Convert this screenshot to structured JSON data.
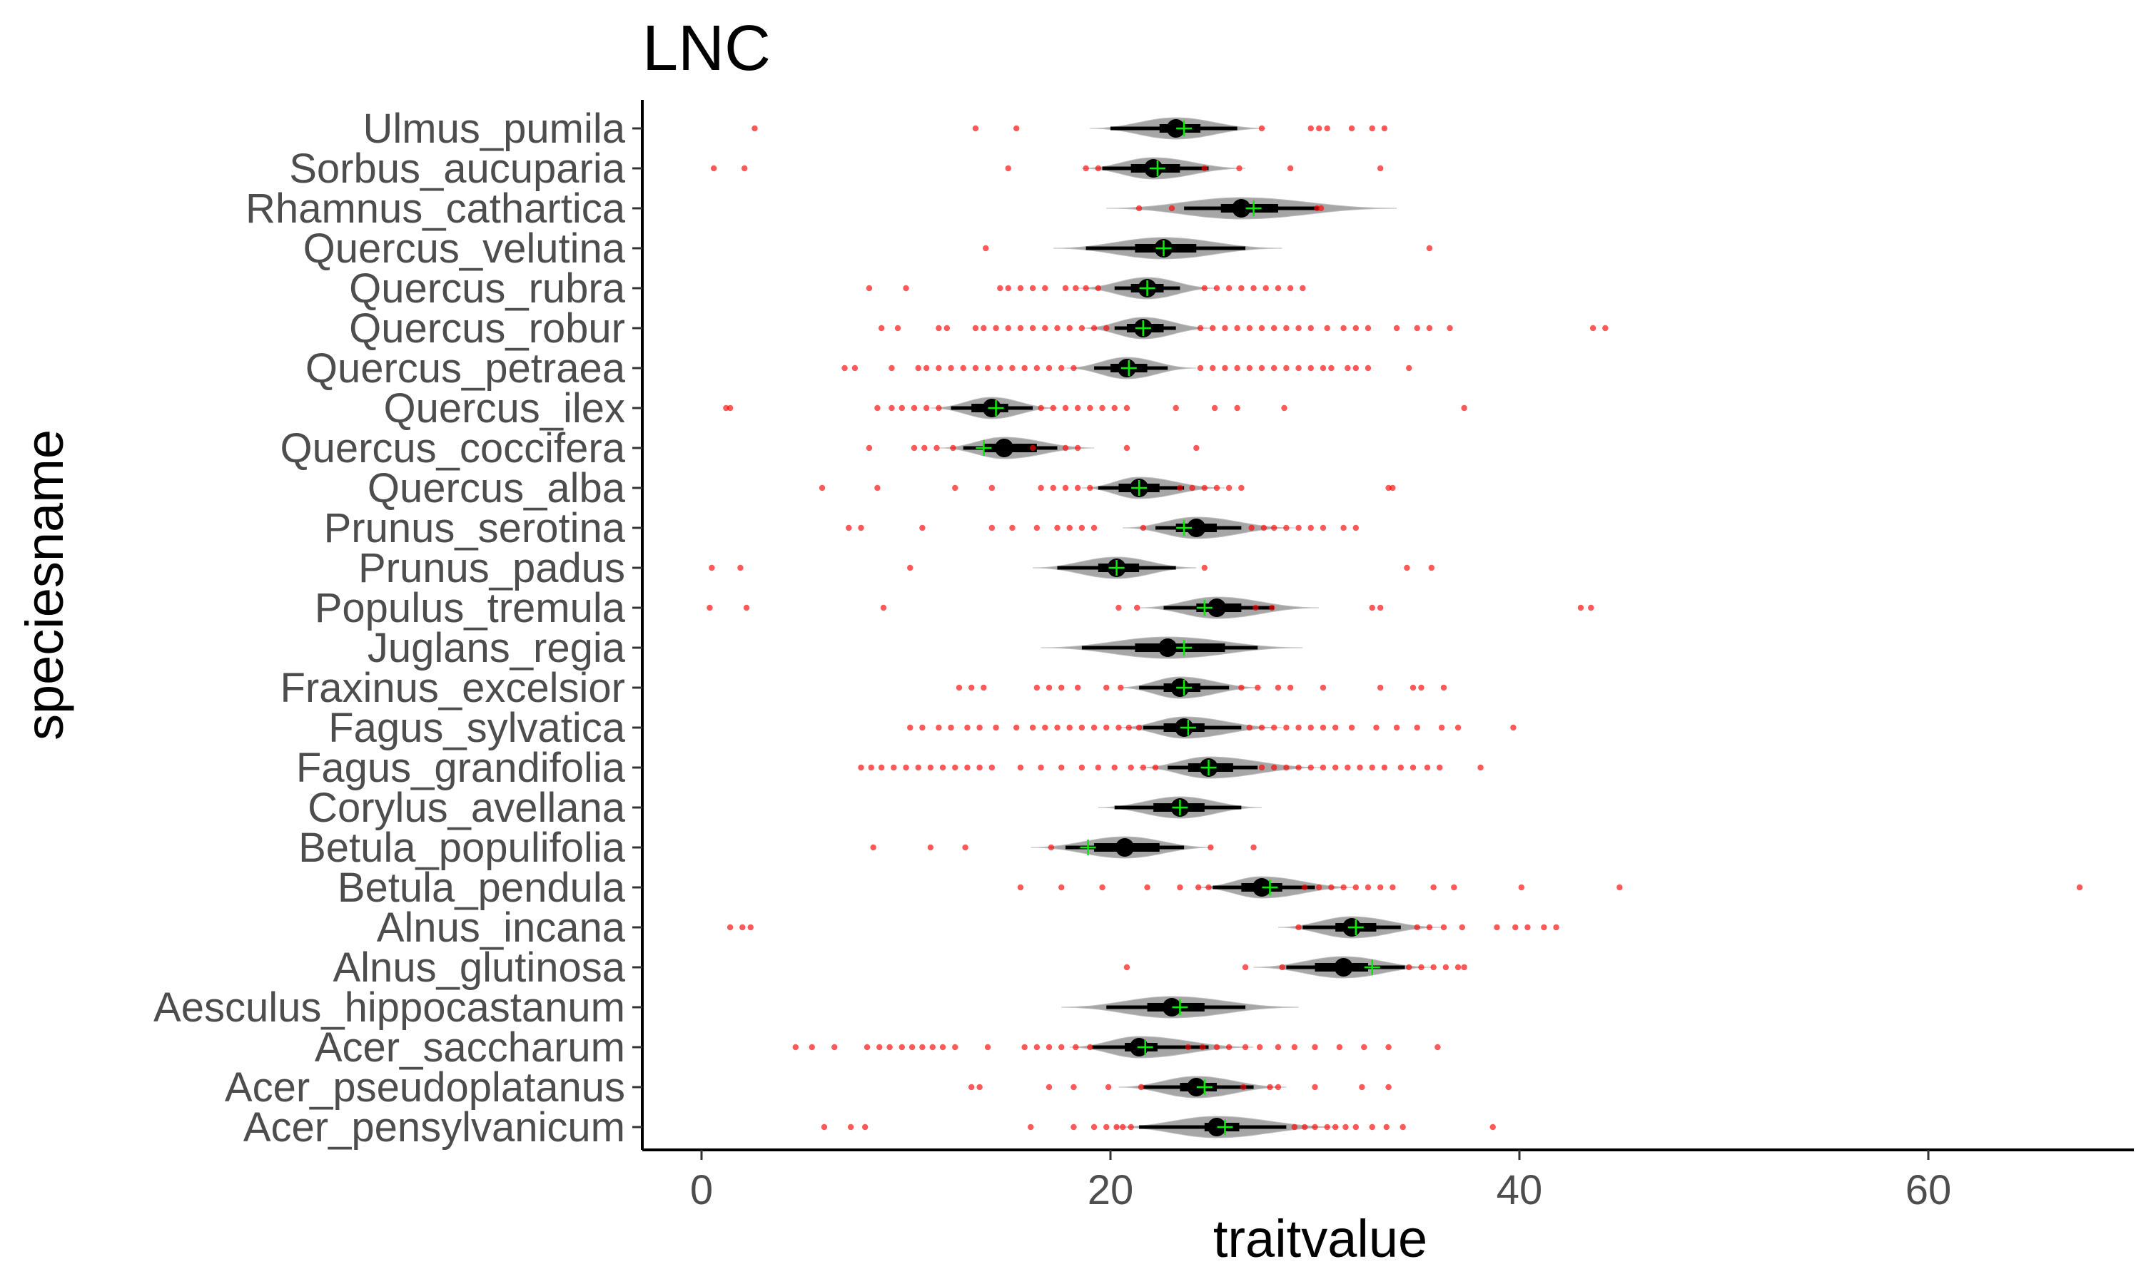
{
  "chart_data": {
    "type": "violin-boxplot",
    "title": "LNC",
    "xlabel": "traitvalue",
    "ylabel": "speciesname",
    "xlim": [
      -3,
      70
    ],
    "xticks": [
      0,
      20,
      40,
      60
    ],
    "xtick_labels": [
      "0",
      "20",
      "40",
      "60"
    ],
    "grid": false,
    "colors": {
      "violin_fill": "#a6a6a6",
      "box": "#000000",
      "median": "#000000",
      "mean": "#00ee00",
      "outlier": "#ff0000",
      "axis": "#000000"
    },
    "species": [
      {
        "name": "Acer_pensylvanicum",
        "min": 21.4,
        "max": 28.6,
        "q1": 24.6,
        "q3": 26.3,
        "median": 25.2,
        "mean": 25.6,
        "ext": [
          20.2,
          31.2
        ],
        "outliers": [
          6.0,
          7.3,
          8.0,
          16.1,
          18.2,
          19.2,
          19.8,
          20.3,
          20.6,
          21.0,
          29.0,
          29.5,
          30.0,
          30.6,
          31.0,
          31.5,
          32.0,
          32.8,
          33.5,
          34.3,
          38.7
        ]
      },
      {
        "name": "Acer_pseudoplatanus",
        "min": 21.6,
        "max": 27.0,
        "q1": 23.4,
        "q3": 25.2,
        "median": 24.2,
        "mean": 24.6,
        "ext": [
          20.4,
          28.6
        ],
        "outliers": [
          13.2,
          13.6,
          17.0,
          18.2,
          19.9,
          21.5,
          26.5,
          27.8,
          28.2,
          30.0,
          32.3,
          33.6
        ]
      },
      {
        "name": "Acer_saccharum",
        "min": 19.1,
        "max": 24.8,
        "q1": 20.7,
        "q3": 22.3,
        "median": 21.4,
        "mean": 21.7,
        "ext": [
          18.0,
          27.0
        ],
        "outliers": [
          4.6,
          5.4,
          6.5,
          8.1,
          8.7,
          9.2,
          9.8,
          10.3,
          10.8,
          11.3,
          11.8,
          12.4,
          14.0,
          15.8,
          16.4,
          17.0,
          17.6,
          18.3,
          19.0,
          23.8,
          24.5,
          25.2,
          25.8,
          26.6,
          27.3,
          28.2,
          29.0,
          30.0,
          31.2,
          32.4,
          33.6,
          36.0
        ]
      },
      {
        "name": "Aesculus_hippocastanum",
        "min": 19.8,
        "max": 26.6,
        "q1": 21.8,
        "q3": 24.6,
        "median": 23.0,
        "mean": 23.4,
        "ext": [
          17.6,
          29.2
        ],
        "outliers": []
      },
      {
        "name": "Alnus_glutinosa",
        "min": 28.6,
        "max": 34.4,
        "q1": 30.0,
        "q3": 32.6,
        "median": 31.4,
        "mean": 32.8,
        "ext": [
          27.0,
          35.8
        ],
        "outliers": [
          20.8,
          26.6,
          28.4,
          34.6,
          35.2,
          35.8,
          36.4,
          37.0,
          37.3
        ]
      },
      {
        "name": "Alnus_incana",
        "min": 29.4,
        "max": 34.2,
        "q1": 31.0,
        "q3": 33.0,
        "median": 31.8,
        "mean": 32.0,
        "ext": [
          28.2,
          36.2
        ],
        "outliers": [
          1.4,
          2.0,
          2.4,
          29.2,
          35.0,
          35.6,
          36.3,
          37.2,
          38.9,
          39.8,
          40.4,
          41.2,
          41.8
        ]
      },
      {
        "name": "Betula_pendula",
        "min": 25.0,
        "max": 30.0,
        "q1": 26.4,
        "q3": 28.4,
        "median": 27.4,
        "mean": 27.8,
        "ext": [
          24.2,
          32.0
        ],
        "outliers": [
          15.6,
          17.6,
          19.6,
          21.8,
          23.4,
          24.3,
          24.8,
          29.5,
          30.2,
          30.8,
          31.4,
          32.0,
          32.6,
          33.2,
          33.8,
          35.8,
          36.8,
          40.1,
          44.9,
          67.4
        ]
      },
      {
        "name": "Betula_populifolia",
        "min": 17.8,
        "max": 23.6,
        "q1": 19.2,
        "q3": 22.4,
        "median": 20.7,
        "mean": 18.9,
        "ext": [
          16.1,
          25.0
        ],
        "outliers": [
          8.4,
          11.2,
          12.9,
          17.1,
          24.9,
          27.0
        ]
      },
      {
        "name": "Corylus_avellana",
        "min": 20.2,
        "max": 26.4,
        "q1": 22.1,
        "q3": 24.6,
        "median": 23.4,
        "mean": 23.4,
        "ext": [
          19.4,
          27.4
        ],
        "outliers": []
      },
      {
        "name": "Fagus_grandifolia",
        "min": 22.8,
        "max": 27.2,
        "q1": 23.8,
        "q3": 26.0,
        "median": 24.8,
        "mean": 24.8,
        "ext": [
          21.4,
          30.4
        ],
        "outliers": [
          7.8,
          8.3,
          8.8,
          9.4,
          10.0,
          10.6,
          11.2,
          11.8,
          12.4,
          13.0,
          13.6,
          14.2,
          15.6,
          16.6,
          17.6,
          18.6,
          19.4,
          20.2,
          21.0,
          21.6,
          22.2,
          27.4,
          28.0,
          28.6,
          29.2,
          29.8,
          30.4,
          31.0,
          31.6,
          32.2,
          32.8,
          33.4,
          34.2,
          34.8,
          35.5,
          36.1,
          38.1
        ]
      },
      {
        "name": "Fagus_sylvatica",
        "min": 21.6,
        "max": 26.4,
        "q1": 22.6,
        "q3": 24.6,
        "median": 23.6,
        "mean": 23.8,
        "ext": [
          20.4,
          28.4
        ],
        "outliers": [
          10.2,
          10.8,
          11.6,
          12.2,
          13.0,
          13.6,
          14.4,
          15.4,
          16.2,
          16.8,
          17.4,
          18.0,
          18.6,
          19.2,
          19.8,
          20.4,
          20.9,
          21.4,
          26.8,
          27.4,
          28.0,
          28.6,
          29.2,
          29.8,
          30.4,
          31.0,
          31.8,
          33.0,
          34.0,
          35.0,
          36.2,
          37.0,
          39.7
        ]
      },
      {
        "name": "Fraxinus_excelsior",
        "min": 21.4,
        "max": 25.8,
        "q1": 22.6,
        "q3": 24.4,
        "median": 23.4,
        "mean": 23.6,
        "ext": [
          20.4,
          27.4
        ],
        "outliers": [
          12.6,
          13.2,
          13.8,
          16.4,
          17.0,
          17.6,
          18.4,
          19.8,
          20.5,
          26.4,
          27.2,
          28.2,
          28.8,
          30.4,
          33.2,
          34.8,
          35.2,
          36.3
        ]
      },
      {
        "name": "Juglans_regia",
        "min": 18.6,
        "max": 27.2,
        "q1": 21.2,
        "q3": 25.6,
        "median": 22.8,
        "mean": 23.6,
        "ext": [
          16.6,
          29.4
        ],
        "outliers": []
      },
      {
        "name": "Populus_tremula",
        "min": 22.6,
        "max": 28.0,
        "q1": 24.2,
        "q3": 26.4,
        "median": 25.2,
        "mean": 24.6,
        "ext": [
          21.4,
          30.2
        ],
        "outliers": [
          0.4,
          2.2,
          8.9,
          20.4,
          21.3,
          27.1,
          27.9,
          32.8,
          33.2,
          43.0,
          43.5
        ]
      },
      {
        "name": "Prunus_padus",
        "min": 17.4,
        "max": 23.2,
        "q1": 19.4,
        "q3": 21.4,
        "median": 20.3,
        "mean": 20.3,
        "ext": [
          16.2,
          24.2
        ],
        "outliers": [
          0.5,
          1.9,
          10.2,
          24.6,
          34.5,
          35.7
        ]
      },
      {
        "name": "Prunus_serotina",
        "min": 22.2,
        "max": 26.4,
        "q1": 23.2,
        "q3": 25.2,
        "median": 24.2,
        "mean": 23.6,
        "ext": [
          20.6,
          29.0
        ],
        "outliers": [
          7.2,
          7.8,
          10.8,
          14.2,
          15.2,
          16.4,
          17.4,
          18.0,
          18.6,
          19.2,
          21.6,
          26.9,
          27.5,
          28.0,
          28.6,
          29.2,
          29.8,
          30.4,
          31.4,
          32.0
        ]
      },
      {
        "name": "Quercus_alba",
        "min": 19.4,
        "max": 23.6,
        "q1": 20.4,
        "q3": 22.4,
        "median": 21.4,
        "mean": 21.4,
        "ext": [
          18.6,
          25.6
        ],
        "outliers": [
          5.9,
          8.6,
          12.4,
          14.2,
          16.6,
          17.2,
          17.8,
          18.4,
          19.0,
          23.4,
          24.0,
          24.6,
          25.2,
          25.8,
          26.4,
          33.6,
          33.8
        ]
      },
      {
        "name": "Quercus_coccifera",
        "min": 12.8,
        "max": 17.4,
        "q1": 13.8,
        "q3": 16.4,
        "median": 14.8,
        "mean": 13.8,
        "ext": [
          11.6,
          19.2
        ],
        "outliers": [
          8.2,
          10.4,
          10.9,
          11.5,
          12.3,
          16.2,
          17.8,
          18.4,
          20.8,
          24.2
        ]
      },
      {
        "name": "Quercus_ilex",
        "min": 12.2,
        "max": 16.2,
        "q1": 13.2,
        "q3": 15.0,
        "median": 14.2,
        "mean": 14.4,
        "ext": [
          11.2,
          17.4
        ],
        "outliers": [
          1.2,
          1.4,
          8.6,
          9.3,
          9.8,
          10.4,
          11.0,
          11.6,
          16.6,
          17.2,
          17.8,
          18.4,
          19.0,
          19.6,
          20.2,
          20.8,
          23.2,
          25.1,
          26.2,
          28.5,
          37.3
        ]
      },
      {
        "name": "Quercus_petraea",
        "min": 19.2,
        "max": 22.8,
        "q1": 20.0,
        "q3": 21.8,
        "median": 20.8,
        "mean": 20.9,
        "ext": [
          17.8,
          24.2
        ],
        "outliers": [
          7.0,
          7.5,
          9.3,
          10.6,
          11.0,
          11.6,
          12.2,
          12.8,
          13.4,
          14.0,
          14.6,
          15.2,
          15.8,
          16.4,
          17.0,
          17.6,
          18.2,
          24.4,
          25.0,
          25.6,
          26.2,
          26.8,
          27.4,
          28.0,
          28.6,
          29.2,
          29.8,
          30.4,
          30.8,
          31.6,
          32.0,
          32.6,
          34.6
        ]
      },
      {
        "name": "Quercus_robur",
        "min": 20.2,
        "max": 23.2,
        "q1": 20.8,
        "q3": 22.6,
        "median": 21.6,
        "mean": 21.6,
        "ext": [
          18.6,
          25.0
        ],
        "outliers": [
          8.8,
          9.6,
          11.6,
          12.0,
          13.4,
          13.8,
          14.4,
          15.0,
          15.6,
          16.2,
          16.8,
          17.4,
          18.0,
          18.6,
          19.2,
          19.8,
          24.4,
          25.0,
          25.6,
          26.2,
          26.8,
          27.4,
          28.0,
          28.6,
          29.2,
          29.8,
          30.6,
          31.4,
          32.0,
          32.6,
          34.0,
          35.0,
          35.6,
          36.6,
          43.6,
          44.2
        ]
      },
      {
        "name": "Quercus_rubra",
        "min": 20.2,
        "max": 23.4,
        "q1": 21.0,
        "q3": 22.6,
        "median": 21.8,
        "mean": 21.8,
        "ext": [
          18.4,
          25.2
        ],
        "outliers": [
          8.2,
          10.0,
          14.6,
          15.0,
          15.6,
          16.2,
          16.8,
          17.8,
          18.3,
          18.8,
          19.4,
          24.6,
          25.2,
          25.8,
          26.4,
          27.0,
          27.6,
          28.2,
          28.8,
          29.4
        ]
      },
      {
        "name": "Quercus_velutina",
        "min": 18.8,
        "max": 26.6,
        "q1": 21.2,
        "q3": 24.2,
        "median": 22.6,
        "mean": 22.6,
        "ext": [
          17.2,
          28.4
        ],
        "outliers": [
          13.9,
          35.6
        ]
      },
      {
        "name": "Rhamnus_cathartica",
        "min": 23.6,
        "max": 30.2,
        "q1": 25.4,
        "q3": 28.2,
        "median": 26.4,
        "mean": 27.0,
        "ext": [
          19.8,
          34.0
        ],
        "outliers": [
          21.4,
          23.0,
          30.1,
          30.3
        ]
      },
      {
        "name": "Sorbus_aucuparia",
        "min": 19.6,
        "max": 24.8,
        "q1": 21.0,
        "q3": 23.4,
        "median": 22.1,
        "mean": 22.3,
        "ext": [
          18.6,
          26.6
        ],
        "outliers": [
          0.6,
          2.1,
          15.0,
          18.8,
          19.4,
          24.6,
          26.3,
          28.8,
          33.2
        ]
      },
      {
        "name": "Ulmus_pumila",
        "min": 20.0,
        "max": 26.2,
        "q1": 22.4,
        "q3": 24.4,
        "median": 23.2,
        "mean": 23.6,
        "ext": [
          19.0,
          27.6
        ],
        "outliers": [
          2.6,
          13.4,
          15.4,
          27.4,
          29.8,
          30.2,
          30.6,
          31.8,
          32.8,
          33.4
        ]
      }
    ]
  }
}
